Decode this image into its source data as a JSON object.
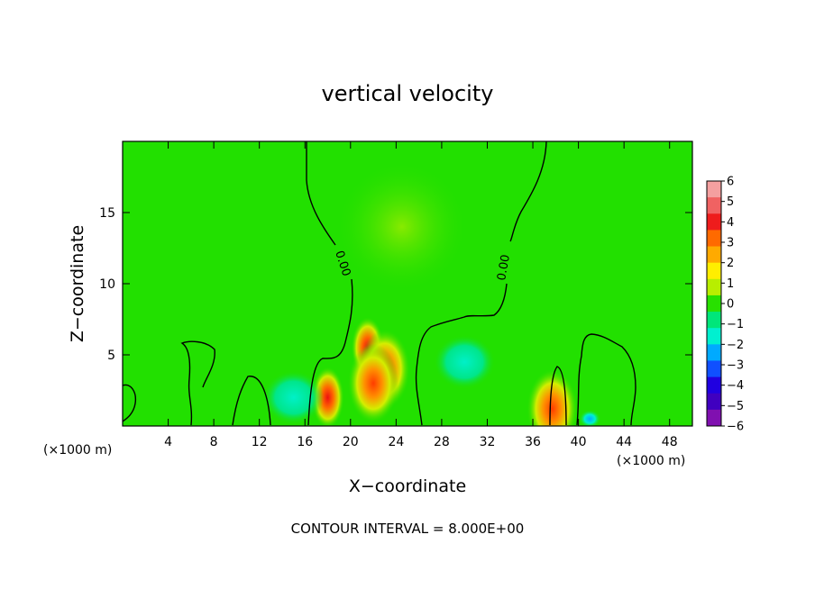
{
  "chart_data": {
    "type": "heatmap",
    "title": "vertical velocity",
    "xlabel": "X−coordinate",
    "ylabel": "Z−coordinate",
    "x_unit_label": "(×1000 m)",
    "z_unit_label": "(×1000 m)",
    "xlim": [
      0,
      50
    ],
    "ylim": [
      0,
      20
    ],
    "x_ticks": [
      4,
      8,
      12,
      16,
      20,
      24,
      28,
      32,
      36,
      40,
      44,
      48
    ],
    "y_ticks": [
      5,
      10,
      15
    ],
    "colorbar": {
      "ticks": [
        "6",
        "5",
        "4",
        "3",
        "2",
        "1",
        "0",
        "−1",
        "−2",
        "−3",
        "−4",
        "−5",
        "−6"
      ],
      "colors": [
        "#f4a0a0",
        "#f06262",
        "#ee1c1c",
        "#ff6a00",
        "#ffaa00",
        "#ffee00",
        "#b8ee00",
        "#28e000",
        "#00e67a",
        "#00f0d0",
        "#00aaff",
        "#1050ff",
        "#2000e0",
        "#4000c0",
        "#8010b0"
      ]
    },
    "contour_labels": [
      "0.00",
      "0.00"
    ],
    "footer": "CONTOUR INTERVAL = 8.000E+00",
    "features": [
      {
        "x": 18.0,
        "z": 2.0,
        "w": 3.5
      },
      {
        "x": 21.5,
        "z": 5.5,
        "w": 3.0
      },
      {
        "x": 23.0,
        "z": 4.0,
        "w": 2.6
      },
      {
        "x": 22.0,
        "z": 3.0,
        "w": 2.2
      },
      {
        "x": 37.7,
        "z": 1.2,
        "w": 2.2
      },
      {
        "x": 24.5,
        "z": 14.0,
        "w": 0.6
      },
      {
        "x": 30.0,
        "z": 4.5,
        "w": -1.5
      },
      {
        "x": 15.0,
        "z": 2.0,
        "w": -1.5
      },
      {
        "x": 41.0,
        "z": 0.5,
        "w": -2.5
      }
    ]
  }
}
